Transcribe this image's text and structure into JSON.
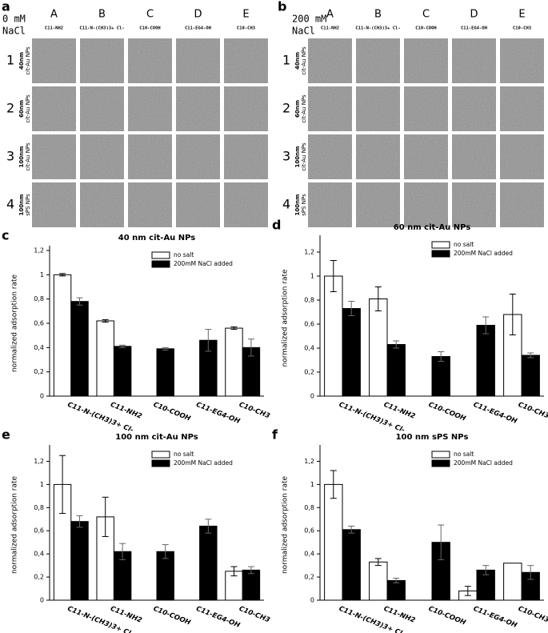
{
  "image_panels": [
    {
      "letter": "a",
      "condition_lines": [
        "0 mM",
        "NaCl"
      ],
      "condition_color": "#000000",
      "columns": [
        "A",
        "B",
        "C",
        "D",
        "E"
      ],
      "surfaces": [
        "C11-NH2",
        "C11-N-(CH3)3+ Cl-",
        "C10-COOH",
        "C11-EG4-OH",
        "C10-CH3"
      ],
      "rows": [
        {
          "number": "1",
          "size": "40nm",
          "particle": "cit-Au NPs",
          "color": "#f08a3c"
        },
        {
          "number": "2",
          "size": "60nm",
          "particle": "cit-Au NPs",
          "color": "#f08a3c"
        },
        {
          "number": "3",
          "size": "100nm",
          "particle": "cit-Au NPs",
          "color": "#f08a3c"
        },
        {
          "number": "4",
          "size": "100nm",
          "particle": "sPS NPs",
          "color": "#000000"
        }
      ]
    },
    {
      "letter": "b",
      "condition_lines": [
        "200 mM",
        "NaCl"
      ],
      "condition_color": "#e8231c",
      "columns": [
        "A",
        "B",
        "C",
        "D",
        "E"
      ],
      "surfaces": [
        "C11-NH2",
        "C11-N-(CH3)3+ Cl-",
        "C10-COOH",
        "C11-EG4-OH",
        "C10-CH3"
      ],
      "rows": [
        {
          "number": "1",
          "size": "40nm",
          "particle": "cit-Au NPs",
          "color": "#f08a3c"
        },
        {
          "number": "2",
          "size": "60nm",
          "particle": "cit-Au NPs",
          "color": "#f08a3c"
        },
        {
          "number": "3",
          "size": "100nm",
          "particle": "cit-Au NPs",
          "color": "#f08a3c"
        },
        {
          "number": "4",
          "size": "100nm",
          "particle": "sPS NPs",
          "color": "#000000"
        }
      ]
    }
  ],
  "chart_data": [
    {
      "type": "bar",
      "panel": "c",
      "title": "40 nm cit-Au NPs",
      "ylabel": "normalized adsorption rate",
      "categories": [
        "C11-N-(CH3)3+ Cl-",
        "C11-NH2",
        "C10-COOH",
        "C11-EG4-OH",
        "C10-CH3"
      ],
      "series": [
        {
          "name": "no salt",
          "color": "#ffffff",
          "values": [
            1.0,
            0.62,
            null,
            null,
            0.56
          ],
          "errors": [
            0.01,
            0.01,
            null,
            null,
            0.01
          ]
        },
        {
          "name": "200mM NaCl added",
          "color": "#000000",
          "values": [
            0.78,
            0.41,
            0.39,
            0.46,
            0.4
          ],
          "errors": [
            0.03,
            0.01,
            0.01,
            0.09,
            0.07
          ]
        }
      ],
      "ylim": [
        0,
        1.2
      ],
      "yticks": [
        0,
        {
          "value": 0.2,
          "label": "0,2"
        },
        {
          "value": 0.4,
          "label": "0,4"
        },
        {
          "value": 0.6,
          "label": "0,6"
        },
        {
          "value": 0.8,
          "label": "0,8"
        },
        1,
        {
          "value": 1.2,
          "label": "1,2"
        }
      ],
      "legend": "upper right"
    },
    {
      "type": "bar",
      "panel": "d",
      "title": "60 nm cit-Au NPs",
      "ylabel": "normalized adsorption rate",
      "categories": [
        "C11-N-(CH3)3+ Cl-",
        "C11-NH2",
        "C10-COOH",
        "C11-EG4-OH",
        "C10-CH3"
      ],
      "series": [
        {
          "name": "no salt",
          "color": "#ffffff",
          "values": [
            1.0,
            0.81,
            null,
            null,
            0.68
          ],
          "errors": [
            0.13,
            0.1,
            null,
            null,
            0.17
          ]
        },
        {
          "name": "200mM NaCl added",
          "color": "#000000",
          "values": [
            0.73,
            0.43,
            0.33,
            0.59,
            0.34
          ],
          "errors": [
            0.06,
            0.03,
            0.04,
            0.07,
            0.02
          ]
        }
      ],
      "ylim": [
        0,
        1.3
      ],
      "yticks": [
        0,
        {
          "value": 0.2,
          "label": "0,2"
        },
        {
          "value": 0.4,
          "label": "0,4"
        },
        {
          "value": 0.6,
          "label": "0,6"
        },
        {
          "value": 0.8,
          "label": "0,8"
        },
        1,
        {
          "value": 1.2,
          "label": "1,2"
        }
      ],
      "legend": "upper right"
    },
    {
      "type": "bar",
      "panel": "e",
      "title": "100 nm cit-Au NPs",
      "ylabel": "normalized adsorption rate",
      "categories": [
        "C11-N-(CH3)3+ Cl-",
        "C11-NH2",
        "C10-COOH",
        "C11-EG4-OH",
        "C10-CH3"
      ],
      "series": [
        {
          "name": "no salt",
          "color": "#ffffff",
          "values": [
            1.0,
            0.72,
            null,
            null,
            0.25
          ],
          "errors": [
            0.25,
            0.17,
            null,
            null,
            0.04
          ]
        },
        {
          "name": "200mM NaCl added",
          "color": "#000000",
          "values": [
            0.68,
            0.42,
            0.42,
            0.64,
            0.26
          ],
          "errors": [
            0.05,
            0.07,
            0.06,
            0.06,
            0.03
          ]
        }
      ],
      "ylim": [
        0,
        1.3
      ],
      "yticks": [
        0,
        {
          "value": 0.2,
          "label": "0,2"
        },
        {
          "value": 0.4,
          "label": "0,4"
        },
        {
          "value": 0.6,
          "label": "0,6"
        },
        {
          "value": 0.8,
          "label": "0,8"
        },
        1,
        {
          "value": 1.2,
          "label": "1,2"
        }
      ],
      "legend": "upper right"
    },
    {
      "type": "bar",
      "panel": "f",
      "title": "100 nm sPS NPs",
      "ylabel": "normalized adsorption rate",
      "categories": [
        "C11-N-(CH3)3+ Cl-",
        "C11-NH2",
        "C10-COOH",
        "C11-EG4-OH",
        "C10-CH3"
      ],
      "series": [
        {
          "name": "no salt",
          "color": "#ffffff",
          "values": [
            1.0,
            0.33,
            null,
            0.08,
            0.32
          ],
          "errors": [
            0.12,
            0.03,
            null,
            0.04,
            null
          ]
        },
        {
          "name": "200mM NaCl added",
          "color": "#000000",
          "values": [
            0.61,
            0.17,
            0.5,
            0.26,
            0.24
          ],
          "errors": [
            0.03,
            0.02,
            0.15,
            0.04,
            0.06
          ]
        }
      ],
      "ylim": [
        0,
        1.3
      ],
      "yticks": [
        0,
        {
          "value": 0.2,
          "label": "0,2"
        },
        {
          "value": 0.4,
          "label": "0,4"
        },
        {
          "value": 0.6,
          "label": "0,6"
        },
        {
          "value": 0.8,
          "label": "0,8"
        },
        1,
        {
          "value": 1.2,
          "label": "1,2"
        }
      ],
      "legend": "upper right"
    }
  ]
}
